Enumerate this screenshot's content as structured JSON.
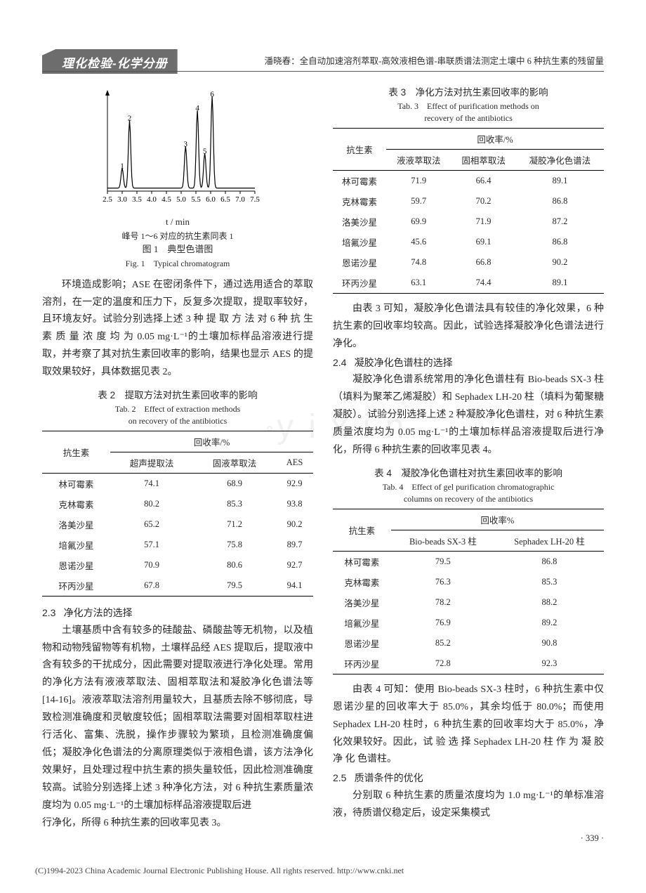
{
  "journal_name": "理化检验-化学分册",
  "running_head": "潘晓春：全自动加速溶剂萃取-高效液相色谱-串联质谱法测定土壤中 6 种抗生素的残留量",
  "watermark": "y i x i n",
  "figure1": {
    "type": "line-chromatogram",
    "note": "峰号 1～6 对应的抗生素同表 1",
    "caption_zh": "图 1　典型色谱图",
    "caption_en": "Fig. 1　Typical chromatogram",
    "xlabel": "t / min",
    "xlim": [
      2.5,
      7.5
    ],
    "xticks": [
      2.5,
      3.0,
      3.5,
      4.0,
      4.5,
      5.0,
      5.5,
      6.0,
      6.5,
      7.0,
      7.5
    ],
    "peaks": [
      {
        "label": "1",
        "t": 3.0,
        "h": 0.2
      },
      {
        "label": "2",
        "t": 3.25,
        "h": 0.68
      },
      {
        "label": "3",
        "t": 5.15,
        "h": 0.42
      },
      {
        "label": "4",
        "t": 5.55,
        "h": 0.78
      },
      {
        "label": "5",
        "t": 5.8,
        "h": 0.35
      },
      {
        "label": "6",
        "t": 6.05,
        "h": 0.92
      }
    ],
    "axis_color": "#000000",
    "line_color": "#000000",
    "background": "#ffffff",
    "label_fontsize": 11
  },
  "para1": "环境造成影响；ASE 在密闭条件下，通过选用适合的萃取溶剂，在一定的温度和压力下，反复多次提取，提取率较好，且环境友好。试验分别选择上述 3 种 提 取 方 法 对 6 种 抗 生 素 质 量 浓 度 均 为 0.05 mg·L⁻¹的土壤加标样品溶液进行提取，并考察了其对抗生素回收率的影响，结果也显示 AES 的提取效果较好，具体数据见表 2。",
  "table2": {
    "caption_zh": "表 2　提取方法对抗生素回收率的影响",
    "caption_en1": "Tab. 2　Effect of extraction methods",
    "caption_en2": "on recovery of the antibiotics",
    "head_col": "抗生素",
    "head_group": "回收率/%",
    "columns": [
      "超声提取法",
      "固液萃取法",
      "AES"
    ],
    "rows": [
      [
        "林可霉素",
        "74.1",
        "68.9",
        "92.9"
      ],
      [
        "克林霉素",
        "80.2",
        "85.3",
        "93.8"
      ],
      [
        "洛美沙星",
        "65.2",
        "71.2",
        "90.2"
      ],
      [
        "培氟沙星",
        "57.1",
        "75.8",
        "89.7"
      ],
      [
        "恩诺沙星",
        "70.9",
        "80.6",
        "92.7"
      ],
      [
        "环丙沙星",
        "67.8",
        "79.5",
        "94.1"
      ]
    ]
  },
  "sec23_num": "2.3",
  "sec23_title": "净化方法的选择",
  "para2_3": "土壤基质中含有较多的硅酸盐、磷酸盐等无机物，以及植物和动物残留物等有机物，土壤样品经 AES 提取后，提取液中含有较多的干扰成分，因此需要对提取液进行净化处理。常用的净化方法有液液萃取法、固相萃取法和凝胶净化色谱法等[14-16]。液液萃取法溶剂用量较大，且基质去除不够彻底，导致检测准确度和灵敏度较低；固相萃取法需要对固相萃取柱进行活化、富集、洗脱，操作步骤较为繁琐，且检测准确度偏低；凝胶净化色谱法的分离原理类似于液相色谱，该方法净化效果好，且处理过程中抗生素的损失量较低，因此检测准确度较高。试验分别选择上述 3 种净化方法，对 6 种抗生素质量浓度均为 0.05 mg·L⁻¹的土壤加标样品溶液提取后进",
  "para_col2_top": "行净化，所得 6 种抗生素的回收率见表 3。",
  "table3": {
    "caption_zh": "表 3　净化方法对抗生素回收率的影响",
    "caption_en1": "Tab. 3　Effect of purification methods on",
    "caption_en2": "recovery of the antibiotics",
    "head_col": "抗生素",
    "head_group": "回收率/%",
    "columns": [
      "液液萃取法",
      "固相萃取法",
      "凝胶净化色谱法"
    ],
    "rows": [
      [
        "林可霉素",
        "71.9",
        "66.4",
        "89.1"
      ],
      [
        "克林霉素",
        "59.7",
        "70.2",
        "86.8"
      ],
      [
        "洛美沙星",
        "69.9",
        "71.9",
        "87.2"
      ],
      [
        "培氟沙星",
        "45.6",
        "69.1",
        "86.8"
      ],
      [
        "恩诺沙星",
        "74.8",
        "66.8",
        "90.2"
      ],
      [
        "环丙沙星",
        "63.1",
        "74.4",
        "89.1"
      ]
    ]
  },
  "para_after_t3": "由表 3 可知，凝胶净化色谱法具有较佳的净化效果，6 种抗生素的回收率均较高。因此，试验选择凝胶净化色谱法进行净化。",
  "sec24_num": "2.4",
  "sec24_title": "凝胶净化色谱柱的选择",
  "para2_4": "凝胶净化色谱系统常用的净化色谱柱有 Bio-beads SX-3 柱（填料为聚苯乙烯凝胶）和 Sephadex LH-20 柱（填料为葡聚糖凝胶）。试验分别选择上述 2 种凝胶净化色谱柱，对 6 种抗生素质量浓度均为 0.05 mg·L⁻¹的土壤加标样品溶液提取后进行净化，所得 6 种抗生素的回收率见表 4。",
  "table4": {
    "caption_zh": "表 4　凝胶净化色谱柱对抗生素回收率的影响",
    "caption_en1": "Tab. 4　Effect of gel purification chromatographic",
    "caption_en2": "columns on recovery of the antibiotics",
    "head_col": "抗生素",
    "head_group": "回收率%",
    "columns": [
      "Bio-beads SX-3 柱",
      "Sephadex LH-20 柱"
    ],
    "rows": [
      [
        "林可霉素",
        "79.5",
        "86.8"
      ],
      [
        "克林霉素",
        "76.3",
        "85.3"
      ],
      [
        "洛美沙星",
        "78.2",
        "88.2"
      ],
      [
        "培氟沙星",
        "76.9",
        "89.2"
      ],
      [
        "恩诺沙星",
        "85.2",
        "90.8"
      ],
      [
        "环丙沙星",
        "72.8",
        "92.3"
      ]
    ]
  },
  "para_after_t4": "由表 4 可知：使用 Bio-beads SX-3 柱时，6 种抗生素中仅恩诺沙星的回收率大于 85.0%，其余均低于 80.0%；而使用 Sephadex LH-20 柱时，6 种抗生素的回收率均大于 85.0%，净化效果较好。因此，试 验 选 择 Sephadex LH-20 柱 作 为 凝 胶 净 化 色谱柱。",
  "sec25_num": "2.5",
  "sec25_title": "质谱条件的优化",
  "para2_5": "分别取 6 种抗生素的质量浓度均为 1.0 mg·L⁻¹的单标准溶液，待质谱仪稳定后，设定采集模式",
  "page_number": "· 339 ·",
  "copyright": "(C)1994-2023 China Academic Journal Electronic Publishing House. All rights reserved.    http://www.cnki.net"
}
